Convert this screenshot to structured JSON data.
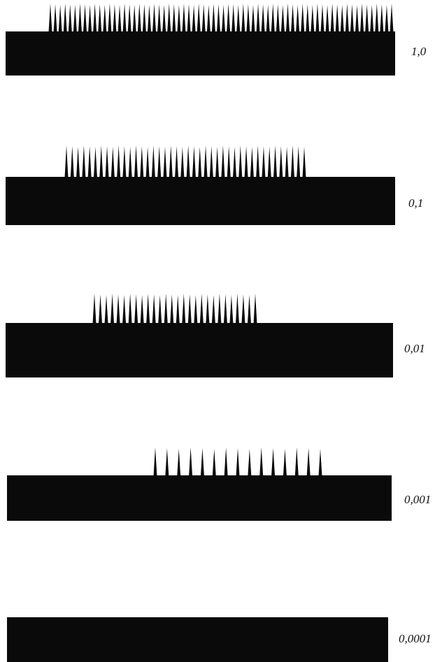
{
  "traces": [
    {
      "label": "1,0"
    },
    {
      "label": "0,1"
    },
    {
      "label": "0,01"
    },
    {
      "label": "0,001"
    },
    {
      "label": "0,0001"
    }
  ]
}
